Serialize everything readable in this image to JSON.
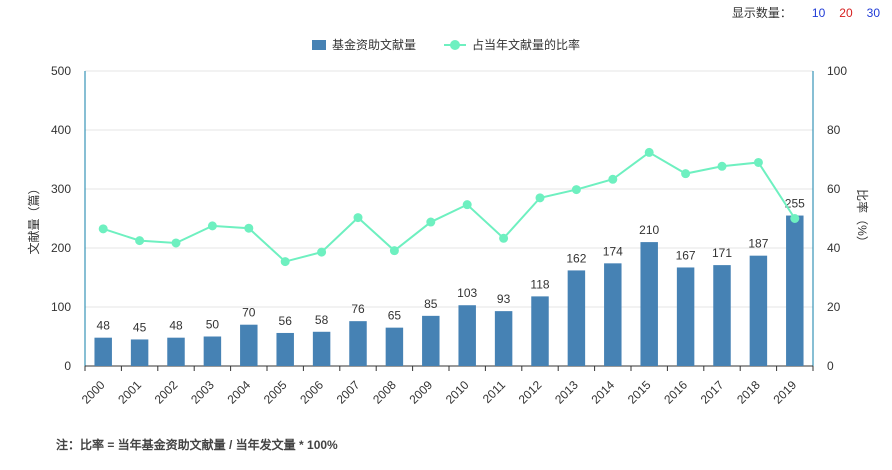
{
  "controls": {
    "label": "显示数量：",
    "options": [
      "10",
      "20",
      "30"
    ]
  },
  "legend": {
    "bar_label": "基金资助文献量",
    "line_label": "占当年文献量的比率"
  },
  "note": "注：比率 = 当年基金资助文献量 / 当年发文量 * 100%",
  "colors": {
    "bar": "#4682b4",
    "line": "#6ef0c0",
    "axis": "#0f7fa8",
    "grid": "#e6e6e6"
  },
  "chart_data": {
    "type": "bar",
    "categories": [
      "2000",
      "2001",
      "2002",
      "2003",
      "2004",
      "2005",
      "2006",
      "2007",
      "2008",
      "2009",
      "2010",
      "2011",
      "2012",
      "2013",
      "2014",
      "2015",
      "2016",
      "2017",
      "2018",
      "2019"
    ],
    "series": [
      {
        "name": "基金资助文献量",
        "type": "bar",
        "axis": "left",
        "values": [
          48,
          45,
          48,
          50,
          70,
          56,
          58,
          76,
          65,
          85,
          103,
          93,
          118,
          162,
          174,
          210,
          167,
          171,
          187,
          255
        ]
      },
      {
        "name": "占当年文献量的比率",
        "type": "line",
        "axis": "right",
        "values": [
          46.5,
          42.5,
          41.7,
          47.5,
          46.7,
          35.4,
          38.6,
          50.3,
          39.1,
          48.8,
          54.7,
          43.3,
          57.0,
          59.8,
          63.3,
          72.4,
          65.2,
          67.7,
          69.0,
          50.0
        ]
      }
    ],
    "ylabel": "文献量（篇）",
    "y2label": "比率（%）",
    "ylim": [
      0,
      500
    ],
    "y2lim": [
      0,
      100
    ],
    "yticks": [
      0,
      100,
      200,
      300,
      400,
      500
    ],
    "y2ticks": [
      0,
      20,
      40,
      60,
      80,
      100
    ],
    "grid": true,
    "legend_position": "top-center"
  }
}
